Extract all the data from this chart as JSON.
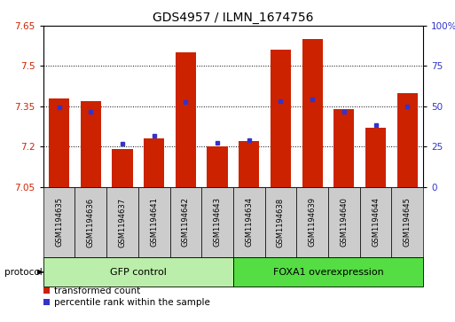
{
  "title": "GDS4957 / ILMN_1674756",
  "samples": [
    "GSM1194635",
    "GSM1194636",
    "GSM1194637",
    "GSM1194641",
    "GSM1194642",
    "GSM1194643",
    "GSM1194634",
    "GSM1194638",
    "GSM1194639",
    "GSM1194640",
    "GSM1194644",
    "GSM1194645"
  ],
  "red_values": [
    7.38,
    7.37,
    7.19,
    7.23,
    7.55,
    7.2,
    7.22,
    7.56,
    7.6,
    7.34,
    7.27,
    7.4
  ],
  "blue_values": [
    7.345,
    7.33,
    7.21,
    7.24,
    7.365,
    7.215,
    7.225,
    7.37,
    7.375,
    7.33,
    7.28,
    7.35
  ],
  "y_min": 7.05,
  "y_max": 7.65,
  "y_ticks": [
    7.05,
    7.2,
    7.35,
    7.5,
    7.65
  ],
  "y_ticks_labels": [
    "7.05",
    "7.2",
    "7.35",
    "7.5",
    "7.65"
  ],
  "y2_ticks": [
    0,
    25,
    50,
    75,
    100
  ],
  "y2_ticks_labels": [
    "0",
    "25",
    "50",
    "75",
    "100%"
  ],
  "group1_label": "GFP control",
  "group2_label": "FOXA1 overexpression",
  "group1_count": 6,
  "group2_count": 6,
  "protocol_label": "protocol",
  "legend1": "transformed count",
  "legend2": "percentile rank within the sample",
  "bar_color": "#cc2200",
  "dot_color": "#3333cc",
  "group1_color": "#bbeeaa",
  "group2_color": "#55dd44",
  "bg_color": "#cccccc",
  "plot_bg": "#ffffff",
  "title_fontsize": 10,
  "tick_fontsize": 7.5,
  "label_fontsize": 7.5
}
